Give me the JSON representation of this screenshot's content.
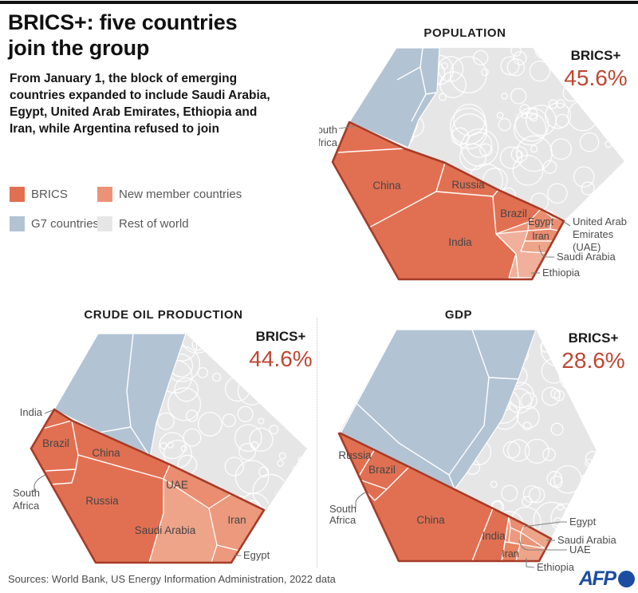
{
  "header": {
    "title_line1": "BRICS+: five countries",
    "title_line2": "join the group",
    "subtitle": "From January 1, the block of emerging countries expanded to include Saudi Arabia, Egypt, United Arab Emirates, Ethiopia and Iran, while Argentina refused to join"
  },
  "legend": {
    "items": [
      {
        "label": "BRICS",
        "color": "#E17052"
      },
      {
        "label": "New member countries",
        "color": "#EC9377"
      },
      {
        "label": "G7 countries",
        "color": "#B2C3D4"
      },
      {
        "label": "Rest of world",
        "color": "#E6E6E7"
      }
    ]
  },
  "charts": {
    "population": {
      "title": "POPULATION",
      "brics_label": "BRICS+",
      "share": "45.6%",
      "labels": {
        "china": "China",
        "russia": "Russia",
        "india": "India",
        "brazil": "Brazil",
        "egypt": "Egypt",
        "iran": "Iran",
        "south_africa": [
          "South",
          "Africa"
        ],
        "uae": [
          "United Arab",
          "Emirates",
          "(UAE)"
        ],
        "saudi": "Saudi Arabia",
        "ethiopia": "Ethiopia"
      }
    },
    "oil": {
      "title": "CRUDE OIL PRODUCTION",
      "brics_label": "BRICS+",
      "share": "44.6%",
      "labels": {
        "india": "India",
        "brazil": "Brazil",
        "china": "China",
        "south_africa": [
          "South",
          "Africa"
        ],
        "russia": "Russia",
        "uae": "UAE",
        "saudi": "Saudi Arabia",
        "iran": "Iran",
        "egypt": "Egypt"
      }
    },
    "gdp": {
      "title": "GDP",
      "brics_label": "BRICS+",
      "share": "28.6%",
      "labels": {
        "russia": "Russia",
        "brazil": "Brazil",
        "south_africa": [
          "South",
          "Africa"
        ],
        "china": "China",
        "india": "India",
        "iran": "Iran",
        "egypt": "Egypt",
        "saudi": "Saudi Arabia",
        "uae": "UAE",
        "ethiopia": "Ethiopia"
      }
    }
  },
  "footer": {
    "sources": "Sources: World Bank, US Energy Information Administration, 2022 data",
    "afp_label": "AFP"
  },
  "colors": {
    "brics": "#E17052",
    "new_member": "#EC9377",
    "new_member_light": "#EEA489",
    "new_member_lighter": "#F0B09B",
    "g7": "#B2C3D4",
    "rest_of_world": "#E6E6E7",
    "brics_border": "#A63B27",
    "share_accent": "#BE4733",
    "afp_blue": "#1C4DA1"
  },
  "chart_data": [
    {
      "type": "pie",
      "variant": "voronoi-treemap-hexagon",
      "title": "POPULATION",
      "highlight": {
        "label": "BRICS+",
        "share_pct": 45.6
      },
      "groups": {
        "brics": [
          "China",
          "India",
          "Russia",
          "Brazil",
          "South Africa"
        ],
        "new_members": [
          "Egypt",
          "Iran",
          "United Arab Emirates (UAE)",
          "Saudi Arabia",
          "Ethiopia"
        ],
        "other": [
          "G7 countries",
          "Rest of world"
        ]
      },
      "legend_position": "top-left-of-page"
    },
    {
      "type": "pie",
      "variant": "voronoi-treemap-hexagon",
      "title": "CRUDE OIL PRODUCTION",
      "highlight": {
        "label": "BRICS+",
        "share_pct": 44.6
      },
      "groups": {
        "brics": [
          "Russia",
          "China",
          "Brazil",
          "India",
          "South Africa"
        ],
        "new_members": [
          "Saudi Arabia",
          "United Arab Emirates (UAE)",
          "Iran",
          "Egypt"
        ],
        "other": [
          "G7 countries",
          "Rest of world"
        ]
      },
      "legend_position": "top-left-of-page"
    },
    {
      "type": "pie",
      "variant": "voronoi-treemap-hexagon",
      "title": "GDP",
      "highlight": {
        "label": "BRICS+",
        "share_pct": 28.6
      },
      "groups": {
        "brics": [
          "China",
          "India",
          "Russia",
          "Brazil",
          "South Africa"
        ],
        "new_members": [
          "Saudi Arabia",
          "United Arab Emirates (UAE)",
          "Iran",
          "Egypt",
          "Ethiopia"
        ],
        "other": [
          "G7 countries",
          "Rest of world"
        ]
      },
      "legend_position": "top-left-of-page"
    }
  ]
}
